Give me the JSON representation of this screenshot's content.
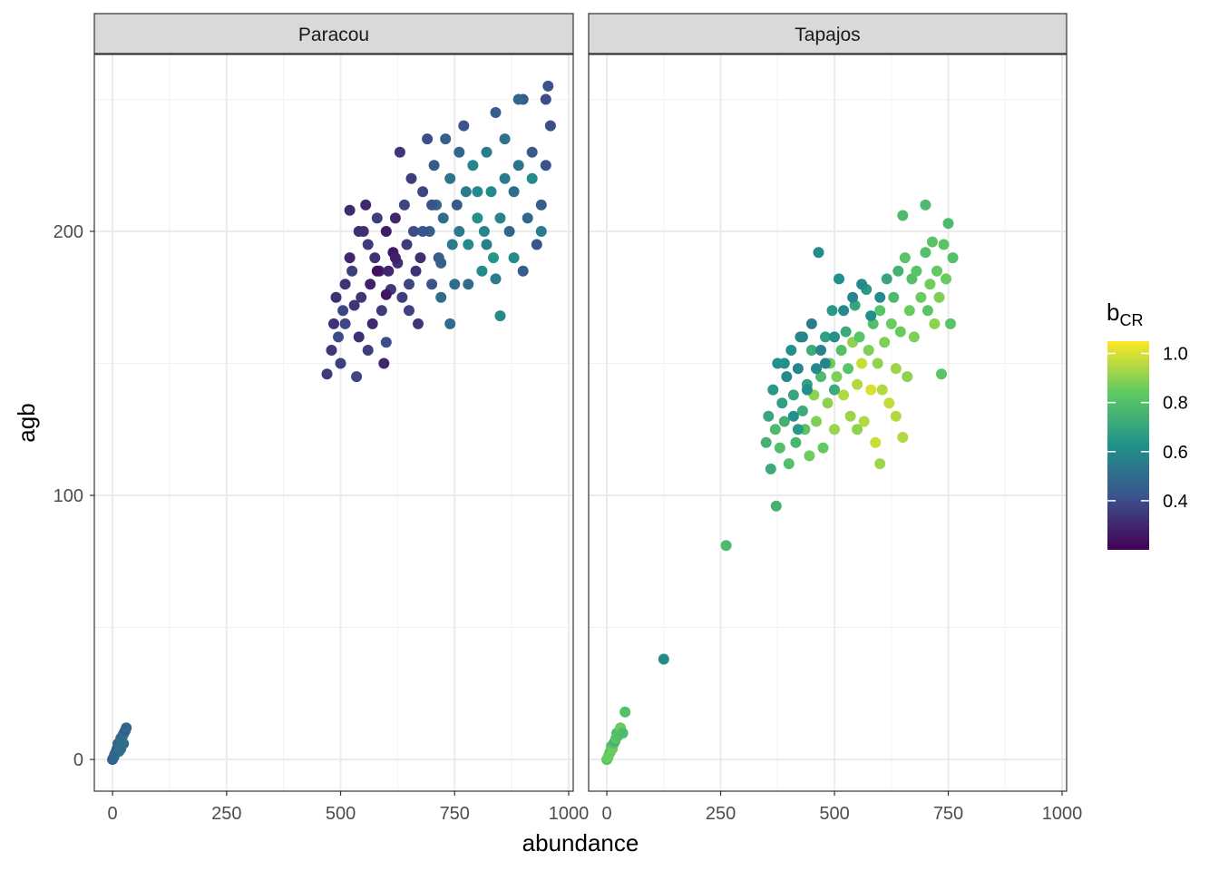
{
  "chart_data": {
    "type": "scatter",
    "xlabel": "abundance",
    "ylabel": "agb",
    "xlim": [
      -40,
      1010
    ],
    "ylim": [
      -12,
      267
    ],
    "x_ticks": [
      0,
      250,
      500,
      750,
      1000
    ],
    "x_tick_labels": [
      "0",
      "250",
      "500",
      "750",
      "1000"
    ],
    "y_ticks": [
      0,
      100,
      200
    ],
    "y_tick_labels": [
      "0",
      "100",
      "200"
    ],
    "grid": true,
    "color_scale": {
      "name": "viridis",
      "title_main": "b",
      "title_sub": "CR",
      "range": [
        0.2,
        1.05
      ],
      "ticks": [
        0.4,
        0.6,
        0.8,
        1.0
      ],
      "tick_labels": [
        "0.4",
        "0.6",
        "0.8",
        "1.0"
      ],
      "stops": [
        "#440154",
        "#3b528b",
        "#21918c",
        "#5ec962",
        "#fde725"
      ],
      "legend_position": "right"
    },
    "panels": [
      {
        "name": "Paracou",
        "points": [
          [
            0,
            0,
            0.45
          ],
          [
            5,
            2,
            0.45
          ],
          [
            8,
            3,
            0.5
          ],
          [
            10,
            4,
            0.42
          ],
          [
            12,
            6,
            0.45
          ],
          [
            15,
            5,
            0.5
          ],
          [
            18,
            8,
            0.45
          ],
          [
            20,
            7,
            0.52
          ],
          [
            22,
            9,
            0.48
          ],
          [
            25,
            10,
            0.5
          ],
          [
            28,
            11,
            0.45
          ],
          [
            30,
            12,
            0.48
          ],
          [
            14,
            3,
            0.55
          ],
          [
            24,
            6,
            0.5
          ],
          [
            3,
            1,
            0.48
          ],
          [
            18,
            4,
            0.5
          ],
          [
            470,
            146,
            0.35
          ],
          [
            480,
            155,
            0.34
          ],
          [
            485,
            165,
            0.33
          ],
          [
            490,
            175,
            0.32
          ],
          [
            495,
            160,
            0.4
          ],
          [
            500,
            150,
            0.36
          ],
          [
            505,
            170,
            0.38
          ],
          [
            510,
            180,
            0.33
          ],
          [
            520,
            190,
            0.3
          ],
          [
            525,
            185,
            0.36
          ],
          [
            535,
            145,
            0.38
          ],
          [
            540,
            160,
            0.32
          ],
          [
            545,
            175,
            0.34
          ],
          [
            550,
            200,
            0.32
          ],
          [
            555,
            210,
            0.3
          ],
          [
            560,
            195,
            0.35
          ],
          [
            565,
            180,
            0.28
          ],
          [
            570,
            165,
            0.3
          ],
          [
            575,
            190,
            0.33
          ],
          [
            580,
            205,
            0.36
          ],
          [
            585,
            185,
            0.31
          ],
          [
            590,
            170,
            0.35
          ],
          [
            595,
            150,
            0.3
          ],
          [
            600,
            200,
            0.27
          ],
          [
            605,
            185,
            0.3
          ],
          [
            610,
            178,
            0.34
          ],
          [
            615,
            192,
            0.26
          ],
          [
            620,
            205,
            0.3
          ],
          [
            625,
            188,
            0.32
          ],
          [
            630,
            230,
            0.34
          ],
          [
            635,
            175,
            0.36
          ],
          [
            640,
            210,
            0.38
          ],
          [
            645,
            195,
            0.35
          ],
          [
            650,
            180,
            0.38
          ],
          [
            655,
            220,
            0.36
          ],
          [
            660,
            200,
            0.4
          ],
          [
            665,
            185,
            0.33
          ],
          [
            670,
            165,
            0.34
          ],
          [
            675,
            190,
            0.32
          ],
          [
            680,
            215,
            0.38
          ],
          [
            690,
            235,
            0.4
          ],
          [
            695,
            200,
            0.45
          ],
          [
            700,
            180,
            0.42
          ],
          [
            705,
            225,
            0.44
          ],
          [
            710,
            210,
            0.48
          ],
          [
            715,
            190,
            0.45
          ],
          [
            720,
            175,
            0.5
          ],
          [
            725,
            205,
            0.5
          ],
          [
            730,
            235,
            0.46
          ],
          [
            740,
            220,
            0.52
          ],
          [
            745,
            195,
            0.55
          ],
          [
            750,
            180,
            0.5
          ],
          [
            755,
            210,
            0.44
          ],
          [
            760,
            230,
            0.48
          ],
          [
            770,
            240,
            0.42
          ],
          [
            775,
            215,
            0.55
          ],
          [
            780,
            195,
            0.6
          ],
          [
            790,
            225,
            0.58
          ],
          [
            800,
            205,
            0.62
          ],
          [
            810,
            185,
            0.6
          ],
          [
            815,
            200,
            0.58
          ],
          [
            820,
            230,
            0.55
          ],
          [
            830,
            215,
            0.6
          ],
          [
            835,
            190,
            0.64
          ],
          [
            840,
            182,
            0.55
          ],
          [
            850,
            205,
            0.58
          ],
          [
            860,
            220,
            0.55
          ],
          [
            870,
            200,
            0.48
          ],
          [
            880,
            215,
            0.5
          ],
          [
            890,
            225,
            0.52
          ],
          [
            900,
            185,
            0.45
          ],
          [
            910,
            205,
            0.48
          ],
          [
            920,
            230,
            0.44
          ],
          [
            930,
            195,
            0.42
          ],
          [
            940,
            210,
            0.45
          ],
          [
            950,
            225,
            0.42
          ],
          [
            960,
            240,
            0.4
          ],
          [
            510,
            165,
            0.38
          ],
          [
            530,
            172,
            0.34
          ],
          [
            560,
            155,
            0.36
          ],
          [
            600,
            158,
            0.4
          ],
          [
            620,
            190,
            0.28
          ],
          [
            650,
            170,
            0.37
          ],
          [
            680,
            200,
            0.42
          ],
          [
            700,
            210,
            0.42
          ],
          [
            720,
            188,
            0.46
          ],
          [
            740,
            165,
            0.5
          ],
          [
            760,
            200,
            0.55
          ],
          [
            780,
            180,
            0.5
          ],
          [
            800,
            215,
            0.6
          ],
          [
            820,
            195,
            0.56
          ],
          [
            840,
            245,
            0.45
          ],
          [
            850,
            168,
            0.6
          ],
          [
            860,
            235,
            0.52
          ],
          [
            880,
            190,
            0.6
          ],
          [
            900,
            250,
            0.45
          ],
          [
            920,
            220,
            0.6
          ],
          [
            940,
            200,
            0.55
          ],
          [
            955,
            255,
            0.42
          ],
          [
            950,
            250,
            0.4
          ],
          [
            890,
            250,
            0.48
          ],
          [
            520,
            208,
            0.31
          ],
          [
            540,
            200,
            0.32
          ],
          [
            580,
            185,
            0.24
          ],
          [
            600,
            176,
            0.25
          ]
        ]
      },
      {
        "name": "Tapajos",
        "points": [
          [
            0,
            0,
            0.82
          ],
          [
            5,
            2,
            0.85
          ],
          [
            8,
            3,
            0.78
          ],
          [
            10,
            5,
            0.8
          ],
          [
            12,
            4,
            0.86
          ],
          [
            15,
            6,
            0.8
          ],
          [
            18,
            7,
            0.75
          ],
          [
            20,
            8,
            0.82
          ],
          [
            22,
            10,
            0.78
          ],
          [
            25,
            9,
            0.8
          ],
          [
            30,
            12,
            0.85
          ],
          [
            35,
            10,
            0.78
          ],
          [
            40,
            18,
            0.8
          ],
          [
            3,
            1,
            0.85
          ],
          [
            125,
            38,
            0.6
          ],
          [
            262,
            81,
            0.78
          ],
          [
            350,
            120,
            0.75
          ],
          [
            355,
            130,
            0.7
          ],
          [
            360,
            110,
            0.72
          ],
          [
            365,
            140,
            0.65
          ],
          [
            370,
            125,
            0.78
          ],
          [
            372,
            96,
            0.75
          ],
          [
            375,
            150,
            0.62
          ],
          [
            380,
            118,
            0.8
          ],
          [
            385,
            135,
            0.68
          ],
          [
            390,
            128,
            0.74
          ],
          [
            395,
            145,
            0.6
          ],
          [
            400,
            112,
            0.8
          ],
          [
            405,
            155,
            0.62
          ],
          [
            410,
            138,
            0.7
          ],
          [
            415,
            120,
            0.76
          ],
          [
            420,
            148,
            0.58
          ],
          [
            425,
            160,
            0.6
          ],
          [
            430,
            132,
            0.72
          ],
          [
            435,
            125,
            0.82
          ],
          [
            440,
            142,
            0.68
          ],
          [
            445,
            115,
            0.86
          ],
          [
            450,
            155,
            0.72
          ],
          [
            455,
            138,
            0.9
          ],
          [
            460,
            128,
            0.88
          ],
          [
            465,
            192,
            0.6
          ],
          [
            470,
            145,
            0.78
          ],
          [
            475,
            118,
            0.84
          ],
          [
            480,
            160,
            0.68
          ],
          [
            485,
            135,
            0.9
          ],
          [
            490,
            150,
            0.85
          ],
          [
            495,
            170,
            0.65
          ],
          [
            500,
            125,
            0.92
          ],
          [
            505,
            145,
            0.88
          ],
          [
            510,
            182,
            0.62
          ],
          [
            515,
            155,
            0.8
          ],
          [
            520,
            138,
            0.95
          ],
          [
            525,
            162,
            0.72
          ],
          [
            530,
            148,
            0.82
          ],
          [
            535,
            130,
            0.92
          ],
          [
            540,
            158,
            0.9
          ],
          [
            545,
            172,
            0.7
          ],
          [
            550,
            142,
            0.95
          ],
          [
            555,
            160,
            0.82
          ],
          [
            560,
            150,
            0.98
          ],
          [
            565,
            128,
            0.95
          ],
          [
            570,
            178,
            0.65
          ],
          [
            575,
            155,
            0.88
          ],
          [
            580,
            140,
            1.0
          ],
          [
            585,
            165,
            0.8
          ],
          [
            590,
            120,
            0.98
          ],
          [
            595,
            150,
            0.9
          ],
          [
            600,
            170,
            0.82
          ],
          [
            605,
            140,
            0.95
          ],
          [
            610,
            158,
            0.88
          ],
          [
            615,
            182,
            0.7
          ],
          [
            620,
            135,
            0.97
          ],
          [
            625,
            165,
            0.85
          ],
          [
            630,
            175,
            0.78
          ],
          [
            635,
            148,
            0.92
          ],
          [
            640,
            185,
            0.75
          ],
          [
            645,
            162,
            0.85
          ],
          [
            650,
            122,
            0.95
          ],
          [
            655,
            190,
            0.82
          ],
          [
            660,
            145,
            0.9
          ],
          [
            665,
            170,
            0.85
          ],
          [
            670,
            182,
            0.8
          ],
          [
            675,
            160,
            0.88
          ],
          [
            680,
            185,
            0.82
          ],
          [
            690,
            175,
            0.85
          ],
          [
            700,
            192,
            0.8
          ],
          [
            705,
            170,
            0.82
          ],
          [
            710,
            180,
            0.86
          ],
          [
            715,
            196,
            0.82
          ],
          [
            720,
            165,
            0.9
          ],
          [
            725,
            185,
            0.84
          ],
          [
            730,
            175,
            0.88
          ],
          [
            740,
            195,
            0.82
          ],
          [
            745,
            182,
            0.85
          ],
          [
            750,
            203,
            0.78
          ],
          [
            755,
            165,
            0.82
          ],
          [
            760,
            190,
            0.8
          ],
          [
            735,
            146,
            0.82
          ],
          [
            440,
            140,
            0.62
          ],
          [
            460,
            148,
            0.6
          ],
          [
            480,
            150,
            0.58
          ],
          [
            500,
            160,
            0.62
          ],
          [
            520,
            170,
            0.6
          ],
          [
            540,
            175,
            0.58
          ],
          [
            560,
            180,
            0.6
          ],
          [
            580,
            168,
            0.62
          ],
          [
            600,
            175,
            0.6
          ],
          [
            430,
            160,
            0.58
          ],
          [
            450,
            165,
            0.55
          ],
          [
            470,
            155,
            0.58
          ],
          [
            390,
            150,
            0.62
          ],
          [
            410,
            130,
            0.62
          ],
          [
            420,
            125,
            0.65
          ],
          [
            650,
            206,
            0.78
          ],
          [
            700,
            210,
            0.78
          ],
          [
            635,
            130,
            0.95
          ],
          [
            600,
            112,
            0.92
          ],
          [
            550,
            125,
            0.9
          ],
          [
            500,
            140,
            0.72
          ]
        ]
      }
    ]
  }
}
